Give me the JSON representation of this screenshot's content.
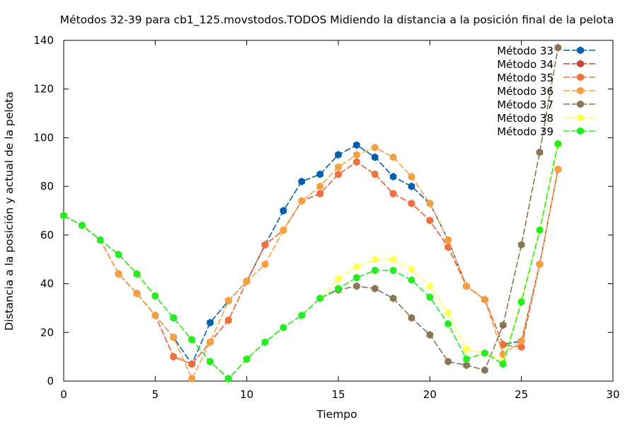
{
  "chart_data": {
    "type": "line",
    "title": "Métodos 32-39 para cb1_125.movstodos.TODOS Midiendo la distancia a la posición final de la pelota",
    "xlabel": "Tiempo",
    "ylabel": "Distancia a la posición y actual de la pelota",
    "xlim": [
      0,
      30
    ],
    "ylim": [
      0,
      140
    ],
    "xticks": [
      0,
      5,
      10,
      15,
      20,
      25,
      30
    ],
    "yticks": [
      0,
      20,
      40,
      60,
      80,
      100,
      120,
      140
    ],
    "legend_position": "top-right",
    "grid": false,
    "x": [
      0,
      1,
      2,
      3,
      4,
      5,
      6,
      7,
      8,
      9,
      10,
      11,
      12,
      13,
      14,
      15,
      16,
      17,
      18,
      19,
      20,
      21,
      22,
      23,
      24,
      25,
      26,
      27
    ],
    "series": [
      {
        "name": "Método 33",
        "color": "#0060ad",
        "values": [
          68,
          64,
          58,
          44,
          36,
          27,
          18,
          7,
          24,
          33,
          41,
          56,
          70,
          82,
          85,
          93,
          97,
          92,
          84,
          80,
          73,
          58,
          39,
          33.5,
          15,
          16.5,
          48,
          87
        ]
      },
      {
        "name": "Método 34",
        "color": "#c8453a",
        "values": [
          68,
          64,
          58,
          44,
          36,
          27,
          10,
          7,
          16,
          25,
          41,
          56,
          62,
          74,
          77,
          85,
          90,
          85,
          77,
          73,
          66,
          55,
          39,
          33.5,
          15,
          14,
          48,
          87
        ]
      },
      {
        "name": "Método 35",
        "color": "#f07040",
        "values": [
          68,
          64,
          58,
          44,
          36,
          27,
          10,
          7,
          16,
          25,
          41,
          56,
          62,
          74,
          77,
          85,
          90,
          85,
          77,
          73,
          66,
          55,
          39,
          33.5,
          15,
          14,
          48,
          87
        ]
      },
      {
        "name": "Método 36",
        "color": "#f5a040",
        "values": [
          68,
          64,
          58,
          44,
          36,
          27,
          18,
          1,
          16,
          33,
          41,
          48,
          62,
          74,
          80,
          88,
          93,
          96,
          92,
          84,
          73,
          58,
          39,
          33.5,
          11,
          16.5,
          48,
          87
        ]
      },
      {
        "name": "Método 37",
        "color": "#8a7555",
        "values": [
          68,
          64,
          58,
          52,
          44,
          35,
          26,
          17,
          8,
          1,
          9,
          16,
          22,
          27,
          34,
          37.5,
          39,
          38,
          34,
          26,
          19,
          8,
          6.5,
          4.5,
          23,
          56,
          94,
          137
        ]
      },
      {
        "name": "Método 38",
        "color": "#ffff55",
        "values": [
          68,
          64,
          58,
          52,
          44,
          35,
          26,
          17,
          8,
          1,
          9,
          16,
          22,
          27,
          34,
          42,
          47,
          50,
          50,
          46,
          39,
          28,
          13,
          11.5,
          8,
          33,
          62,
          97
        ]
      },
      {
        "name": "Método 39",
        "color": "#22ee22",
        "values": [
          68,
          64,
          58,
          52,
          44,
          35,
          26,
          17,
          8,
          1,
          9,
          16,
          22,
          27,
          34,
          38,
          42.5,
          45.5,
          45.5,
          41.5,
          34.5,
          23.5,
          9,
          11.5,
          7,
          32.5,
          62,
          97.5
        ]
      }
    ]
  }
}
